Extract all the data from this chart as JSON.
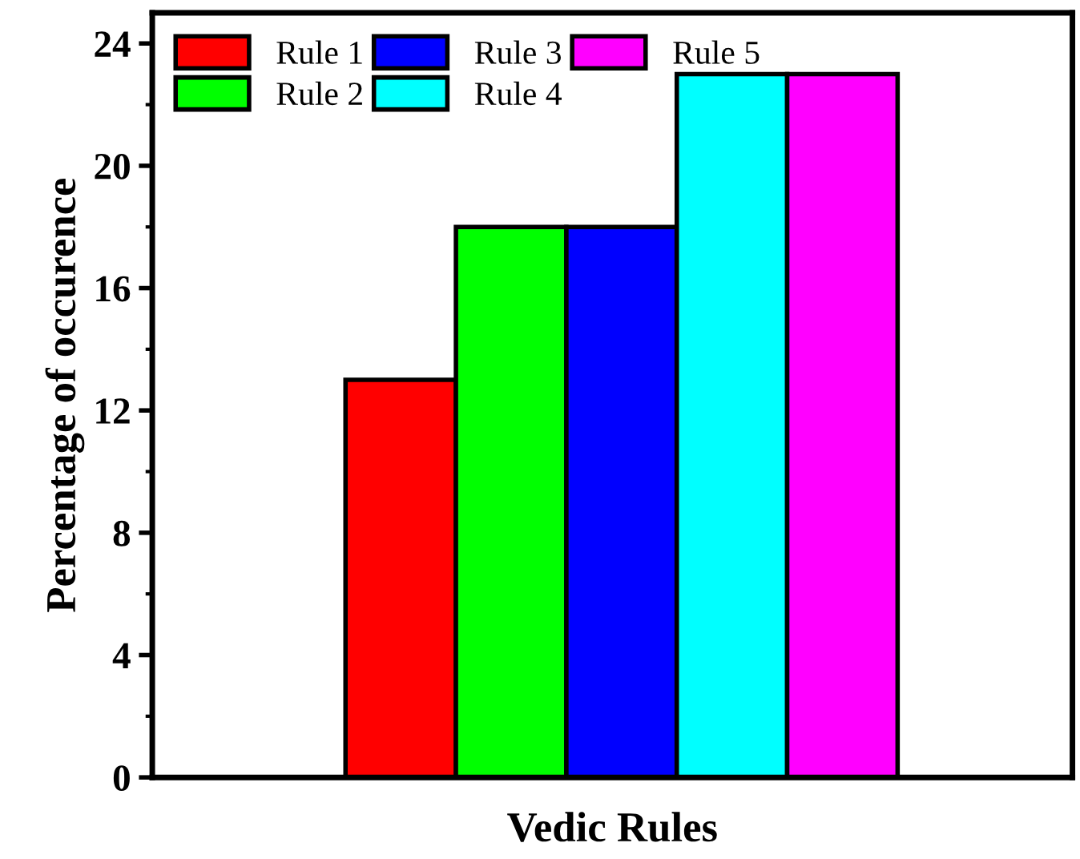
{
  "chart_data": {
    "type": "bar",
    "xlabel": "Vedic Rules",
    "ylabel": "Percentage of occurence",
    "categories": [
      null
    ],
    "series": [
      {
        "name": "Rule 1",
        "color": "#ff0000",
        "values": [
          13
        ]
      },
      {
        "name": "Rule 2",
        "color": "#00ff00",
        "values": [
          18
        ]
      },
      {
        "name": "Rule 3",
        "color": "#0000ff",
        "values": [
          18
        ]
      },
      {
        "name": "Rule 4",
        "color": "#00ffff",
        "values": [
          23
        ]
      },
      {
        "name": "Rule 5",
        "color": "#ff00ff",
        "values": [
          23
        ]
      }
    ],
    "ylim": [
      0,
      25
    ],
    "yticks": [
      0,
      4,
      8,
      12,
      16,
      20,
      24
    ],
    "grid": false,
    "legend": "top left"
  }
}
